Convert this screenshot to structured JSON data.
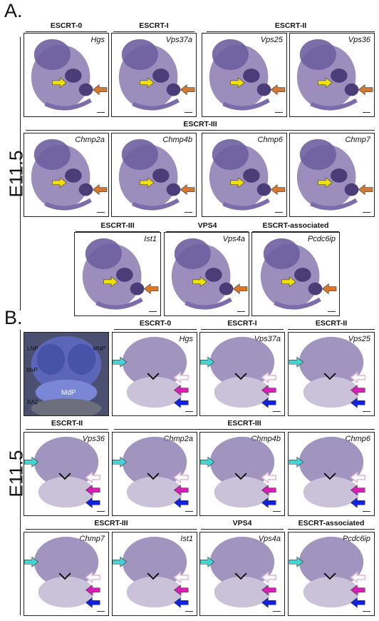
{
  "panels": {
    "a": {
      "letter": "A.",
      "stage": "E11.5",
      "groups": [
        "ESCRT-0",
        "ESCRT-I",
        "ESCRT-II",
        "ESCRT-III",
        "ESCRT-III",
        "VPS4",
        "ESCRT-associated"
      ],
      "genes": [
        "Hgs",
        "Vps37a",
        "Vps25",
        "Vps36",
        "Chmp2a",
        "Chmp4b",
        "Chmp6",
        "Chmp7",
        "Ist1",
        "Vps4a",
        "Pcdc6ip"
      ]
    },
    "b": {
      "letter": "B.",
      "stage": "E11.5",
      "groups": [
        "ESCRT-0",
        "ESCRT-I",
        "ESCRT-II",
        "ESCRT-II",
        "ESCRT-III",
        "ESCRT-III",
        "VPS4",
        "ESCRT-associated"
      ],
      "genes": [
        "Hgs",
        "Vps37a",
        "Vps25",
        "Vps36",
        "Chmp2a",
        "Chmp4b",
        "Chmp6",
        "Chmp7",
        "Ist1",
        "Vps4a",
        "Pcdc6ip"
      ],
      "reference_labels": [
        "LNP",
        "MNP",
        "MxP",
        "MdP",
        "BA2"
      ]
    }
  },
  "colors": {
    "yellow_arrow": "#f2e000",
    "orange_arrow": "#d9772a",
    "cyan_arrow": "#3fd6d6",
    "light_pink_arrow": "#e3b6d6",
    "magenta_arrow": "#d81fb4",
    "blue_arrow": "#1122dd",
    "embryo_stain": "#8a7ab0"
  }
}
